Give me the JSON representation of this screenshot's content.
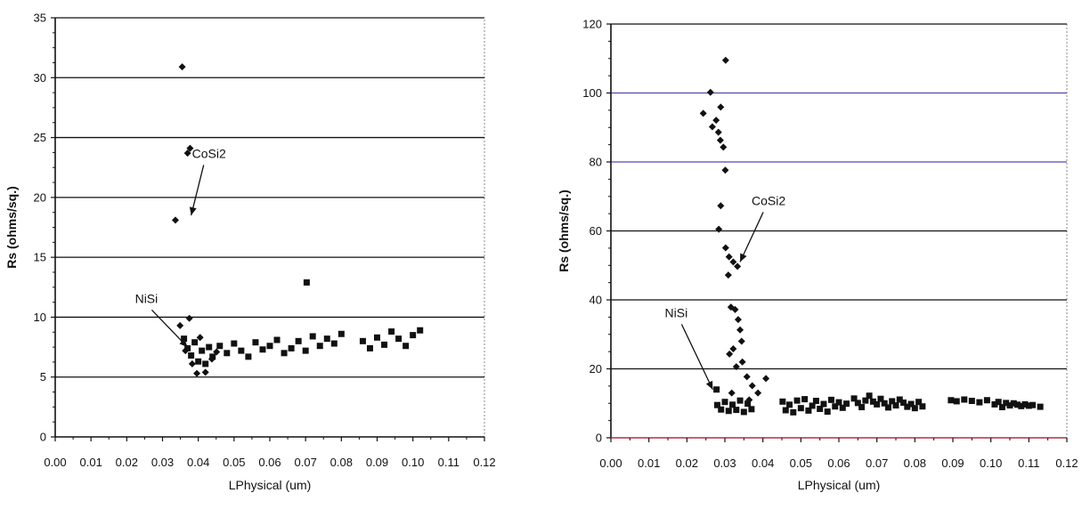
{
  "chart_data": [
    {
      "type": "scatter",
      "xlabel": "LPhysical (um)",
      "ylabel": "Rs (ohms/sq.)",
      "xlim": [
        0,
        0.12
      ],
      "ylim": [
        0,
        35
      ],
      "xticks": [
        "0.00",
        "0.01",
        "0.02",
        "0.03",
        "0.04",
        "0.05",
        "0.06",
        "0.07",
        "0.08",
        "0.09",
        "0.10",
        "0.11",
        "0.12"
      ],
      "yticks": [
        "0",
        "5",
        "10",
        "15",
        "20",
        "25",
        "30",
        "35"
      ],
      "grid": "horizontal",
      "annotations": [
        {
          "text": "CoSi2",
          "x": 0.043,
          "y": 23.3,
          "arrow_to": [
            0.038,
            18.5
          ]
        },
        {
          "text": "NiSi",
          "x": 0.0255,
          "y": 11.2,
          "arrow_to": [
            0.037,
            7.5
          ]
        }
      ],
      "series": [
        {
          "marker": "diamond",
          "points": [
            [
              0.0355,
              30.9
            ],
            [
              0.037,
              23.7
            ],
            [
              0.0377,
              24.1
            ],
            [
              0.0336,
              18.1
            ],
            [
              0.0349,
              9.3
            ],
            [
              0.0375,
              9.9
            ],
            [
              0.0364,
              7.2
            ],
            [
              0.0383,
              6.1
            ],
            [
              0.0396,
              5.3
            ],
            [
              0.0405,
              8.3
            ],
            [
              0.042,
              5.4
            ],
            [
              0.0438,
              6.5
            ],
            [
              0.0451,
              7.1
            ]
          ]
        },
        {
          "marker": "square",
          "points": [
            [
              0.0703,
              12.9
            ],
            [
              0.036,
              8.2
            ],
            [
              0.037,
              7.4
            ],
            [
              0.038,
              6.8
            ],
            [
              0.039,
              7.9
            ],
            [
              0.04,
              6.3
            ],
            [
              0.041,
              7.2
            ],
            [
              0.042,
              6.1
            ],
            [
              0.043,
              7.5
            ],
            [
              0.044,
              6.7
            ],
            [
              0.046,
              7.6
            ],
            [
              0.048,
              7.0
            ],
            [
              0.05,
              7.8
            ],
            [
              0.052,
              7.2
            ],
            [
              0.054,
              6.7
            ],
            [
              0.056,
              7.9
            ],
            [
              0.058,
              7.3
            ],
            [
              0.06,
              7.6
            ],
            [
              0.062,
              8.1
            ],
            [
              0.064,
              7.0
            ],
            [
              0.066,
              7.4
            ],
            [
              0.068,
              8.0
            ],
            [
              0.07,
              7.2
            ],
            [
              0.072,
              8.4
            ],
            [
              0.074,
              7.6
            ],
            [
              0.076,
              8.2
            ],
            [
              0.078,
              7.8
            ],
            [
              0.08,
              8.6
            ],
            [
              0.086,
              8.0
            ],
            [
              0.088,
              7.4
            ],
            [
              0.09,
              8.3
            ],
            [
              0.092,
              7.7
            ],
            [
              0.094,
              8.8
            ],
            [
              0.096,
              8.2
            ],
            [
              0.098,
              7.6
            ],
            [
              0.1,
              8.5
            ],
            [
              0.102,
              8.9
            ]
          ]
        }
      ]
    },
    {
      "type": "scatter",
      "xlabel": "LPhysical (um)",
      "ylabel": "Rs (ohms/sq.)",
      "xlim": [
        0,
        0.12
      ],
      "ylim": [
        0,
        120
      ],
      "xticks": [
        "0.00",
        "0.01",
        "0.02",
        "0.03",
        "0.04",
        "0.05",
        "0.06",
        "0.07",
        "0.08",
        "0.09",
        "0.10",
        "0.11",
        "0.12"
      ],
      "yticks": [
        "0",
        "20",
        "40",
        "60",
        "80",
        "100",
        "120"
      ],
      "grid": "horizontal",
      "annotations": [
        {
          "text": "CoSi2",
          "x": 0.0415,
          "y": 67.5,
          "arrow_to": [
            0.034,
            51
          ]
        },
        {
          "text": "NiSi",
          "x": 0.0172,
          "y": 35,
          "arrow_to": [
            0.0268,
            14
          ]
        }
      ],
      "series": [
        {
          "marker": "diamond",
          "points": [
            [
              0.0302,
              109.5
            ],
            [
              0.0262,
              100.2
            ],
            [
              0.0243,
              94.1
            ],
            [
              0.0277,
              92.1
            ],
            [
              0.0267,
              90.2
            ],
            [
              0.0289,
              95.9
            ],
            [
              0.0283,
              88.6
            ],
            [
              0.0288,
              86.3
            ],
            [
              0.0296,
              84.3
            ],
            [
              0.0301,
              77.6
            ],
            [
              0.0289,
              67.3
            ],
            [
              0.0284,
              60.5
            ],
            [
              0.0302,
              55.1
            ],
            [
              0.0311,
              52.5
            ],
            [
              0.0322,
              51.0
            ],
            [
              0.0333,
              49.7
            ],
            [
              0.0309,
              47.2
            ],
            [
              0.0316,
              37.9
            ],
            [
              0.0327,
              37.2
            ],
            [
              0.0335,
              34.3
            ],
            [
              0.034,
              31.3
            ],
            [
              0.0344,
              28.0
            ],
            [
              0.0322,
              25.8
            ],
            [
              0.0312,
              24.3
            ],
            [
              0.0346,
              22.0
            ],
            [
              0.033,
              20.6
            ],
            [
              0.0358,
              17.7
            ],
            [
              0.0372,
              15.1
            ],
            [
              0.0408,
              17.2
            ],
            [
              0.0387,
              13.0
            ],
            [
              0.0318,
              13.0
            ],
            [
              0.0364,
              11.0
            ]
          ]
        },
        {
          "marker": "square",
          "points": [
            [
              0.0278,
              14.0
            ],
            [
              0.028,
              9.5
            ],
            [
              0.029,
              8.2
            ],
            [
              0.03,
              10.4
            ],
            [
              0.031,
              7.8
            ],
            [
              0.032,
              9.6
            ],
            [
              0.033,
              8.1
            ],
            [
              0.034,
              10.8
            ],
            [
              0.035,
              7.5
            ],
            [
              0.036,
              9.9
            ],
            [
              0.037,
              8.3
            ],
            [
              0.0452,
              10.5
            ],
            [
              0.046,
              8.0
            ],
            [
              0.047,
              9.6
            ],
            [
              0.048,
              7.4
            ],
            [
              0.049,
              10.8
            ],
            [
              0.05,
              8.6
            ],
            [
              0.051,
              11.2
            ],
            [
              0.052,
              7.9
            ],
            [
              0.053,
              9.3
            ],
            [
              0.054,
              10.7
            ],
            [
              0.055,
              8.4
            ],
            [
              0.056,
              9.8
            ],
            [
              0.057,
              7.6
            ],
            [
              0.058,
              11.0
            ],
            [
              0.059,
              9.1
            ],
            [
              0.06,
              10.3
            ],
            [
              0.061,
              8.7
            ],
            [
              0.062,
              9.9
            ],
            [
              0.064,
              11.4
            ],
            [
              0.065,
              10.1
            ],
            [
              0.066,
              8.9
            ],
            [
              0.067,
              10.8
            ],
            [
              0.068,
              12.2
            ],
            [
              0.069,
              10.5
            ],
            [
              0.07,
              9.7
            ],
            [
              0.071,
              11.3
            ],
            [
              0.072,
              10.0
            ],
            [
              0.073,
              8.8
            ],
            [
              0.074,
              10.6
            ],
            [
              0.075,
              9.4
            ],
            [
              0.076,
              11.1
            ],
            [
              0.077,
              10.2
            ],
            [
              0.078,
              9.0
            ],
            [
              0.079,
              9.8
            ],
            [
              0.08,
              8.6
            ],
            [
              0.081,
              10.4
            ],
            [
              0.082,
              9.1
            ],
            [
              0.0895,
              10.9
            ],
            [
              0.091,
              10.6
            ],
            [
              0.093,
              11.1
            ],
            [
              0.095,
              10.7
            ],
            [
              0.097,
              10.3
            ],
            [
              0.099,
              10.9
            ],
            [
              0.101,
              9.7
            ],
            [
              0.102,
              10.4
            ],
            [
              0.103,
              8.9
            ],
            [
              0.104,
              10.1
            ],
            [
              0.105,
              9.4
            ],
            [
              0.106,
              10.0
            ],
            [
              0.107,
              9.6
            ],
            [
              0.108,
              9.2
            ],
            [
              0.109,
              9.7
            ],
            [
              0.11,
              9.3
            ],
            [
              0.111,
              9.5
            ],
            [
              0.113,
              9.0
            ]
          ]
        }
      ]
    }
  ]
}
